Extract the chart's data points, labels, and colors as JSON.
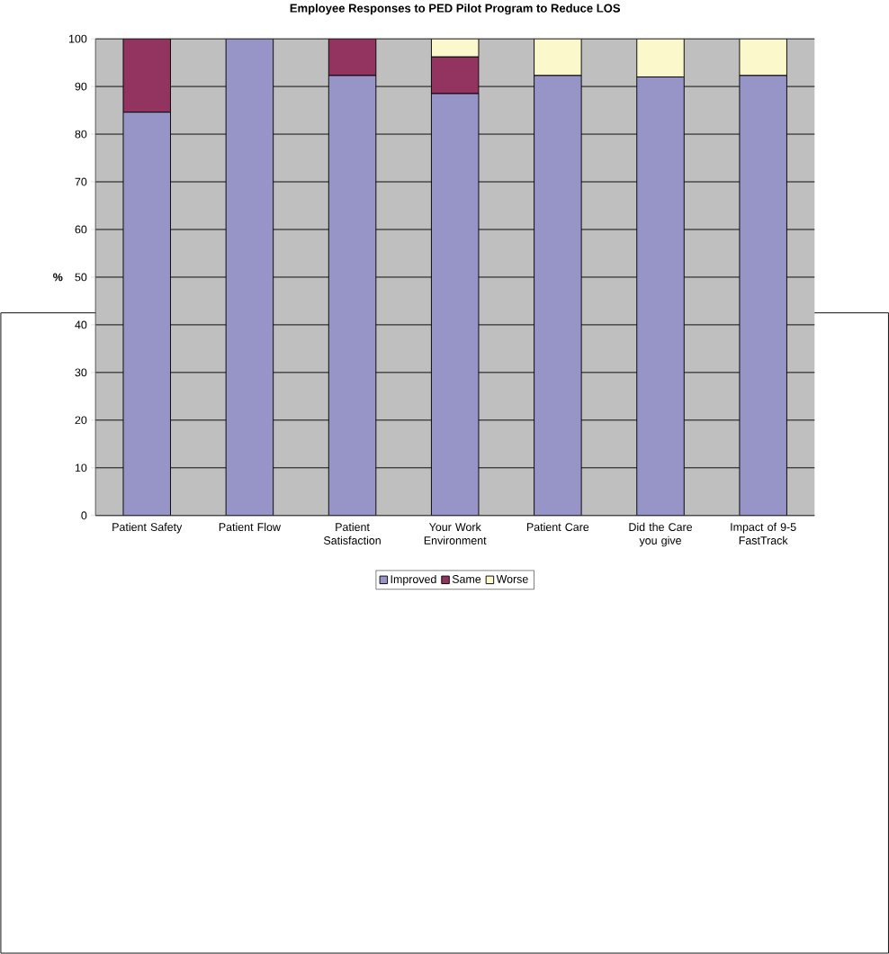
{
  "chart_data": {
    "type": "bar",
    "title": "Employee Responses to PED Pilot Program to Reduce LOS",
    "ylabel": "%",
    "categories": [
      "Patient Safety",
      "Patient Flow",
      "Patient Satisfaction",
      "Your Work Environment",
      "Patient Care",
      "Did the Care you give",
      "Impact of 9-5 FastTrack"
    ],
    "stacked": true,
    "ylim": [
      0,
      100
    ],
    "yticks": [
      0,
      10,
      20,
      30,
      40,
      50,
      60,
      70,
      80,
      90,
      100
    ],
    "grid": "y",
    "legend": "bottom",
    "series": [
      {
        "name": "Improved",
        "color": "#9794c8",
        "values": [
          84.6,
          100,
          92.3,
          88.5,
          92.3,
          92,
          92.3
        ]
      },
      {
        "name": "Same",
        "color": "#933360",
        "values": [
          15.4,
          0,
          7.7,
          7.7,
          0,
          0,
          0
        ]
      },
      {
        "name": "Worse",
        "color": "#fbf8cc",
        "values": [
          0,
          0,
          0,
          3.8,
          7.7,
          8,
          7.7
        ]
      }
    ]
  }
}
